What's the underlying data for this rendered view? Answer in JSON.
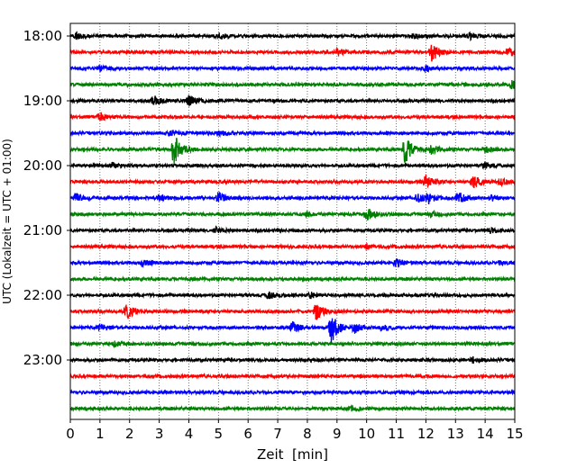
{
  "chart_data": {
    "type": "line",
    "title": "",
    "xlabel": "Zeit  [min]",
    "ylabel": "UTC (Lokalzeit = UTC + 01:00)",
    "xlim": [
      0,
      15
    ],
    "xticks": [
      0,
      1,
      2,
      3,
      4,
      5,
      6,
      7,
      8,
      9,
      10,
      11,
      12,
      13,
      14,
      15
    ],
    "x_grid": true,
    "ytick_labels": [
      "18:00",
      "19:00",
      "20:00",
      "21:00",
      "22:00",
      "23:00"
    ],
    "trace_colors": [
      "#000000",
      "#ff0000",
      "#0000ff",
      "#008000"
    ],
    "trace_interval_min": 15,
    "traces": [
      {
        "start": "18:00",
        "events": [
          {
            "t": 0.2,
            "amp": 0.5
          },
          {
            "t": 5.0,
            "amp": 0.4
          },
          {
            "t": 11.6,
            "amp": 0.4
          },
          {
            "t": 13.5,
            "amp": 0.4
          }
        ]
      },
      {
        "start": "18:15",
        "events": [
          {
            "t": 9.0,
            "amp": 0.4
          },
          {
            "t": 12.2,
            "amp": 1.3
          },
          {
            "t": 14.8,
            "amp": 0.6
          }
        ]
      },
      {
        "start": "18:30",
        "events": [
          {
            "t": 1.0,
            "amp": 0.4
          },
          {
            "t": 12.0,
            "amp": 0.3
          }
        ]
      },
      {
        "start": "18:45",
        "events": [
          {
            "t": 14.9,
            "amp": 0.6
          }
        ]
      },
      {
        "start": "19:00",
        "events": [
          {
            "t": 2.8,
            "amp": 0.7
          },
          {
            "t": 4.0,
            "amp": 0.7
          }
        ]
      },
      {
        "start": "19:15",
        "events": [
          {
            "t": 1.0,
            "amp": 0.6
          }
        ]
      },
      {
        "start": "19:30",
        "events": [
          {
            "t": 3.3,
            "amp": 0.4
          },
          {
            "t": 5.0,
            "amp": 0.4
          }
        ]
      },
      {
        "start": "19:45",
        "events": [
          {
            "t": 3.5,
            "amp": 2.3
          },
          {
            "t": 11.3,
            "amp": 2.0
          },
          {
            "t": 12.2,
            "amp": 0.6
          },
          {
            "t": 14.0,
            "amp": 0.5
          }
        ]
      },
      {
        "start": "20:00",
        "events": [
          {
            "t": 1.4,
            "amp": 0.4
          },
          {
            "t": 14.0,
            "amp": 0.4
          }
        ]
      },
      {
        "start": "20:15",
        "events": [
          {
            "t": 12.0,
            "amp": 0.9
          },
          {
            "t": 13.6,
            "amp": 0.9
          },
          {
            "t": 14.5,
            "amp": 0.4
          }
        ]
      },
      {
        "start": "20:30",
        "events": [
          {
            "t": 0.2,
            "amp": 0.6
          },
          {
            "t": 3.0,
            "amp": 0.4
          },
          {
            "t": 5.0,
            "amp": 0.8
          },
          {
            "t": 11.7,
            "amp": 0.8
          },
          {
            "t": 12.1,
            "amp": 0.6
          },
          {
            "t": 13.1,
            "amp": 0.9
          },
          {
            "t": 14.2,
            "amp": 0.4
          }
        ]
      },
      {
        "start": "20:45",
        "events": [
          {
            "t": 8.0,
            "amp": 0.3
          },
          {
            "t": 10.0,
            "amp": 1.0
          },
          {
            "t": 12.2,
            "amp": 0.4
          }
        ]
      },
      {
        "start": "21:00",
        "events": [
          {
            "t": 4.9,
            "amp": 0.4
          },
          {
            "t": 14.2,
            "amp": 0.4
          }
        ]
      },
      {
        "start": "21:15",
        "events": [
          {
            "t": 10.0,
            "amp": 0.3
          }
        ]
      },
      {
        "start": "21:30",
        "events": [
          {
            "t": 2.4,
            "amp": 0.5
          },
          {
            "t": 11.0,
            "amp": 0.5
          },
          {
            "t": 14.5,
            "amp": 0.3
          }
        ]
      },
      {
        "start": "21:45",
        "events": []
      },
      {
        "start": "22:00",
        "events": [
          {
            "t": 6.7,
            "amp": 0.5
          },
          {
            "t": 8.1,
            "amp": 0.4
          }
        ]
      },
      {
        "start": "22:15",
        "events": [
          {
            "t": 1.9,
            "amp": 1.1
          },
          {
            "t": 8.3,
            "amp": 1.2
          }
        ]
      },
      {
        "start": "22:30",
        "events": [
          {
            "t": 1.0,
            "amp": 0.4
          },
          {
            "t": 7.5,
            "amp": 0.8
          },
          {
            "t": 8.8,
            "amp": 2.2
          },
          {
            "t": 9.6,
            "amp": 0.6
          },
          {
            "t": 10.5,
            "amp": 0.4
          }
        ]
      },
      {
        "start": "22:45",
        "events": [
          {
            "t": 1.5,
            "amp": 0.3
          }
        ]
      },
      {
        "start": "23:00",
        "events": [
          {
            "t": 13.6,
            "amp": 0.4
          }
        ]
      },
      {
        "start": "23:15",
        "events": []
      },
      {
        "start": "23:30",
        "events": []
      },
      {
        "start": "23:45",
        "events": [
          {
            "t": 9.5,
            "amp": 0.3
          }
        ]
      }
    ]
  }
}
